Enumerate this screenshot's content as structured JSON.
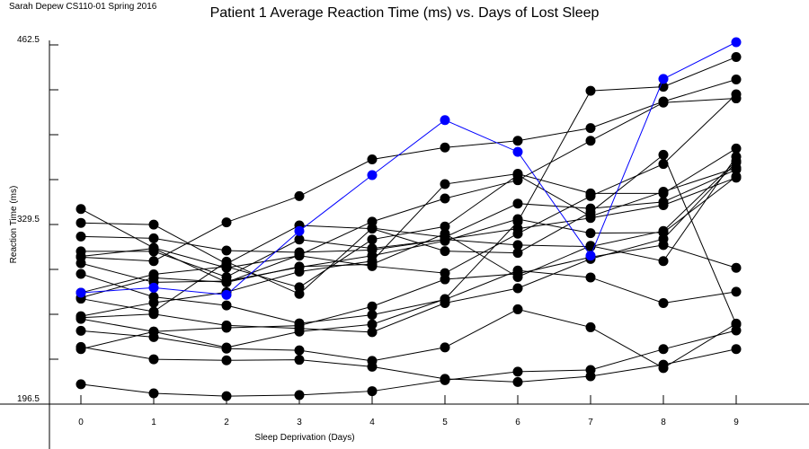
{
  "credit": "Sarah Depew CS110-01 Spring 2016",
  "chart_data": {
    "type": "line",
    "title": "Patient 1 Average Reaction Time (ms) vs. Days of Lost Sleep",
    "xlabel": "Sleep Deprivation (Days)",
    "ylabel": "Reaction Time (ms)",
    "x": [
      0,
      1,
      2,
      3,
      4,
      5,
      6,
      7,
      8,
      9
    ],
    "xticks": [
      "0",
      "1",
      "2",
      "3",
      "4",
      "5",
      "6",
      "7",
      "8",
      "9"
    ],
    "ytick_labels": [
      {
        "value": 196.5,
        "label": "196.5"
      },
      {
        "value": 329.5,
        "label": "329.5"
      },
      {
        "value": 462.5,
        "label": "462.5"
      }
    ],
    "ylim": [
      196.5,
      462.5
    ],
    "line_color": "#000000",
    "highlight_color": "#0000ff",
    "series": [
      {
        "values": [
          259.6,
          250.2,
          238.4,
          250.2,
          255.5,
          274.3,
          331.6,
          428.5,
          431.5,
          453.5
        ],
        "highlight": false
      },
      {
        "values": [
          238.8,
          229.7,
          228.9,
          229.3,
          224.2,
          215.2,
          212.9,
          217.1,
          225.7,
          237.2
        ],
        "highlight": false
      },
      {
        "values": [
          250.8,
          246.1,
          237.6,
          236.3,
          228.5,
          238.5,
          266.7,
          253.4,
          223.2,
          256.1
        ],
        "highlight": false
      },
      {
        "values": [
          237.2,
          250.2,
          253.0,
          254.6,
          268.8,
          288.9,
          293.0,
          305.3,
          314.3,
          297.4
        ],
        "highlight": false
      },
      {
        "values": [
          260.5,
          263.2,
          254.8,
          252.5,
          249.8,
          271.3,
          282.3,
          304.0,
          318.8,
          375.5
        ],
        "highlight": false
      },
      {
        "values": [
          261.6,
          271.6,
          279.4,
          294.6,
          302.4,
          359.4,
          367.1,
          352.5,
          352.5,
          385.8
        ],
        "highlight": false
      },
      {
        "values": [
          275.3,
          290.0,
          286.7,
          306.9,
          331.6,
          348.8,
          362.3,
          391.5,
          419.8,
          422.9
        ],
        "highlight": false
      },
      {
        "values": [
          292.9,
          275.9,
          269.6,
          256.3,
          262.6,
          273.9,
          295.4,
          290.3,
          271.3,
          279.7
        ],
        "highlight": false
      },
      {
        "values": [
          300.8,
          286.7,
          287.6,
          297.8,
          306.4,
          317.4,
          333.5,
          323.1,
          323.5,
          365.0
        ],
        "highlight": false
      },
      {
        "values": [
          305.9,
          311.8,
          286.7,
          298.3,
          300.0,
          322.7,
          290.6,
          313.7,
          302.4,
          379.7
        ],
        "highlight": false
      },
      {
        "values": [
          274.6,
          265.0,
          302.0,
          278.1,
          326.8,
          320.1,
          345.0,
          341.4,
          346.2,
          370.2
        ],
        "highlight": false
      },
      {
        "values": [
          279.0,
          292.6,
          298.3,
          283.0,
          318.4,
          328.0,
          366.1,
          335.5,
          353.8,
          371.5
        ],
        "highlight": false
      },
      {
        "values": [
          309.6,
          309.6,
          290.6,
          318.4,
          311.8,
          318.4,
          326.4,
          334.3,
          343.8,
          364.2
        ],
        "highlight": false
      },
      {
        "values": [
          305.3,
          302.4,
          331.1,
          350.5,
          377.7,
          386.5,
          391.5,
          400.9,
          420.6,
          436.9
        ],
        "highlight": false
      },
      {
        "values": [
          341.0,
          312.2,
          297.4,
          306.4,
          298.7,
          293.5,
          322.7,
          350.5,
          374.3,
          425.9
        ],
        "highlight": false
      },
      {
        "values": [
          320.6,
          319.3,
          310.2,
          308.9,
          310.6,
          318.4,
          314.3,
          313.1,
          324.7,
          376.5
        ],
        "highlight": false
      },
      {
        "values": [
          330.7,
          329.4,
          300.4,
          328.8,
          326.4,
          309.8,
          308.5,
          338.6,
          381.1,
          255.5
        ],
        "highlight": false
      },
      {
        "values": [
          211.2,
          204.5,
          202.4,
          203.2,
          206.1,
          214.2,
          220.5,
          221.8,
          237.2,
          251.0
        ],
        "highlight": false
      },
      {
        "values": [
          279.0,
          282.7,
          277.4,
          324.7,
          366.1,
          406.8,
          383.3,
          306.4,
          437.3,
          464.5
        ],
        "highlight": true
      }
    ]
  }
}
